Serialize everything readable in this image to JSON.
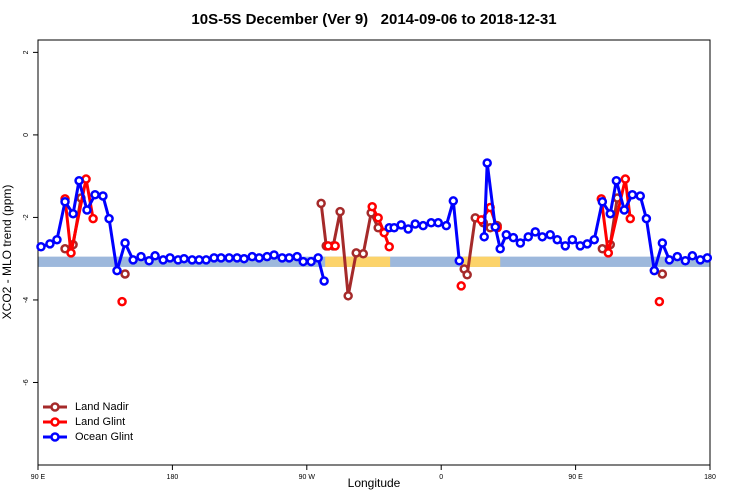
{
  "chart_data": {
    "type": "line",
    "title": "10S-5S December (Ver 9)   2014-09-06 to 2018-12-31",
    "x_label": "Longitude",
    "y_label": "XCO2 - MLO trend (ppm)",
    "xlim": [
      90,
      540
    ],
    "ylim": [
      -8,
      2.3
    ],
    "xticks": [
      {
        "value": 90,
        "label": "90 E"
      },
      180,
      {
        "value": 270,
        "label": "90 W"
      },
      0,
      {
        "value": 450,
        "label": "90 E"
      },
      {
        "value": 540,
        "label": "180"
      }
    ],
    "yticks": [
      2,
      0,
      -2,
      -4,
      -6
    ],
    "legend": "bottom-left",
    "surface_band": {
      "ylim": [
        -3.2,
        -2.95
      ],
      "segments": [
        {
          "start": 90,
          "end": 540,
          "color": "#9db8dc"
        },
        {
          "start": 282.3,
          "end": 325.8,
          "color": "#fcd36a"
        },
        {
          "start": 374.1,
          "end": 399.5,
          "color": "#fcd36a"
        }
      ]
    },
    "series": [
      {
        "name": "Land Nadir",
        "color": "#a52a2a",
        "x": [
          108.1,
          113.5,
          118.8,
          null,
          148.3,
          null,
          279.6,
          283.0,
          287.7,
          292.3,
          297.7,
          303.1,
          307.8,
          313.1,
          317.8,
          null,
          375.4,
          377.4,
          382.8,
          388.2,
          392.8,
          397.5,
          null,
          467.9,
          473.2,
          477.9,
          null,
          508.1
        ],
        "values": [
          -2.76,
          -2.66,
          -1.53,
          null,
          -3.37,
          null,
          -1.66,
          -2.69,
          -2.69,
          -1.86,
          -3.9,
          -2.86,
          -2.88,
          -1.89,
          -2.25,
          null,
          -3.25,
          -3.39,
          -2.01,
          -2.13,
          -2.25,
          -2.2,
          null,
          -2.76,
          -2.66,
          -1.53,
          null,
          -3.37
        ]
      },
      {
        "name": "Land Glint",
        "color": "#ff0000",
        "x": [
          108.1,
          112.1,
          122.2,
          126.9,
          null,
          146.3,
          null,
          284.3,
          289.0,
          null,
          313.8,
          317.8,
          321.8,
          325.2,
          null,
          373.4,
          null,
          386.8,
          392.8,
          397.5,
          null,
          467.2,
          471.9,
          483.3,
          486.6,
          null,
          506.1
        ],
        "values": [
          -1.55,
          -2.86,
          -1.07,
          -2.03,
          null,
          -4.04,
          null,
          -2.69,
          -2.69,
          null,
          -1.74,
          -2.01,
          -2.37,
          -2.71,
          null,
          -3.66,
          null,
          -2.06,
          -1.76,
          -2.25,
          null,
          -1.55,
          -2.86,
          -1.07,
          -2.03,
          null,
          -4.04
        ]
      },
      {
        "name": "Ocean Glint",
        "color": "#0000ff",
        "x": [
          92.0,
          98.0,
          102.7,
          108.1,
          113.5,
          117.5,
          122.8,
          128.2,
          133.5,
          137.6,
          142.9,
          148.3,
          153.7,
          159.0,
          164.4,
          168.4,
          173.8,
          178.4,
          183.8,
          187.8,
          193.2,
          197.9,
          202.6,
          207.9,
          212.6,
          218.0,
          223.3,
          228.0,
          233.4,
          238.1,
          243.4,
          248.1,
          253.5,
          258.2,
          263.5,
          267.6,
          272.9,
          277.6,
          281.6,
          null,
          325.2,
          328.5,
          333.2,
          337.9,
          342.6,
          347.9,
          353.3,
          358.0,
          363.4,
          368.1,
          372.1,
          null,
          388.8,
          390.8,
          396.2,
          399.5,
          403.6,
          408.3,
          413.0,
          418.3,
          423.0,
          427.7,
          433.0,
          437.7,
          443.1,
          447.8,
          453.1,
          457.8,
          462.5,
          467.9,
          473.2,
          477.3,
          482.6,
          488.0,
          493.3,
          497.4,
          502.7,
          508.1,
          512.8,
          518.1,
          523.5,
          528.2,
          533.5,
          538.2
        ],
        "values": [
          -2.71,
          -2.64,
          -2.54,
          -1.62,
          -1.91,
          -1.11,
          -1.82,
          -1.45,
          -1.48,
          -2.03,
          -3.29,
          -2.62,
          -3.03,
          -2.95,
          -3.05,
          -2.93,
          -3.03,
          -2.98,
          -3.03,
          -3.0,
          -3.03,
          -3.03,
          -3.03,
          -2.98,
          -2.98,
          -2.98,
          -2.98,
          -3.0,
          -2.95,
          -2.98,
          -2.95,
          -2.91,
          -2.98,
          -2.98,
          -2.95,
          -3.07,
          -3.07,
          -2.98,
          -3.54,
          null,
          -2.25,
          -2.25,
          -2.18,
          -2.28,
          -2.16,
          -2.2,
          -2.13,
          -2.13,
          -2.2,
          -1.6,
          -3.05,
          null,
          -2.47,
          -0.68,
          -2.23,
          -2.76,
          -2.42,
          -2.49,
          -2.62,
          -2.47,
          -2.35,
          -2.47,
          -2.42,
          -2.54,
          -2.69,
          -2.54,
          -2.69,
          -2.64,
          -2.54,
          -1.62,
          -1.91,
          -1.11,
          -1.82,
          -1.45,
          -1.48,
          -2.03,
          -3.29,
          -2.62,
          -3.03,
          -2.95,
          -3.05,
          -2.93,
          -3.03,
          -2.98
        ]
      }
    ]
  }
}
